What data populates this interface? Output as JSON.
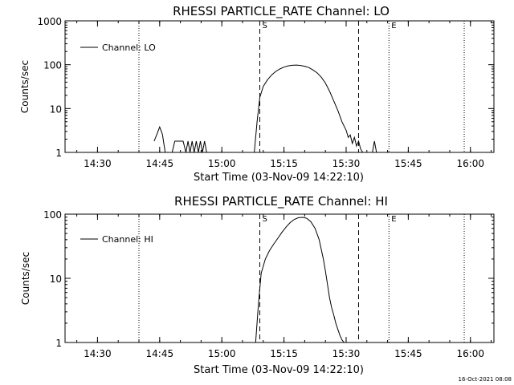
{
  "chart_data": [
    {
      "type": "line",
      "title": "RHESSI PARTICLE_RATE Channel: LO",
      "xlabel": "Start Time (03-Nov-09 14:22:10)",
      "ylabel": "Counts/sec",
      "yscale": "log",
      "ylim": [
        1,
        1000
      ],
      "xlim": [
        "14:22:10",
        "16:05:40"
      ],
      "x_ticks": [
        "14:30",
        "14:45",
        "15:00",
        "15:15",
        "15:30",
        "15:45",
        "16:00"
      ],
      "y_ticks": [
        "1",
        "10",
        "100",
        "1000"
      ],
      "legend": {
        "label": "Channel: LO",
        "position": "top-left"
      },
      "markers": [
        {
          "label": "",
          "time": "14:40:00",
          "style": "dotted"
        },
        {
          "label": "S",
          "time": "15:09:10",
          "style": "dashed"
        },
        {
          "label": "",
          "time": "15:33:00",
          "style": "dashed"
        },
        {
          "label": "E",
          "time": "15:40:20",
          "style": "dotted"
        },
        {
          "label": "",
          "time": "15:58:30",
          "style": "dotted"
        }
      ],
      "series": [
        {
          "name": "Channel: LO",
          "segments": [
            {
              "x": [
                "14:43:40",
                "14:44:20",
                "14:45:00",
                "14:45:40",
                "14:46:20"
              ],
              "y": [
                1.8,
                2.6,
                3.8,
                2.6,
                1.0
              ]
            },
            {
              "x": [
                "14:48:00",
                "14:48:40",
                "14:50:40",
                "14:51:20",
                "14:51:50",
                "14:52:20",
                "14:52:50",
                "14:53:20",
                "14:53:50",
                "14:54:20",
                "14:54:50",
                "14:55:20",
                "14:55:50",
                "14:56:20"
              ],
              "y": [
                1.0,
                1.8,
                1.8,
                1.0,
                1.8,
                1.0,
                1.8,
                1.0,
                1.8,
                1.0,
                1.8,
                1.0,
                1.8,
                1.0
              ]
            },
            {
              "x": [
                "15:07:50",
                "15:08:30",
                "15:09:10",
                "15:10:00",
                "15:11:00",
                "15:12:00",
                "15:13:00",
                "15:14:00",
                "15:15:00",
                "15:16:00",
                "15:17:00",
                "15:18:00",
                "15:19:00",
                "15:20:00",
                "15:21:00",
                "15:22:00",
                "15:23:00",
                "15:24:00",
                "15:25:00",
                "15:26:00",
                "15:27:00",
                "15:28:00",
                "15:29:00",
                "15:30:00",
                "15:30:30",
                "15:31:00",
                "15:31:30",
                "15:32:00",
                "15:32:30",
                "15:33:00",
                "15:33:30",
                "15:34:00"
              ],
              "y": [
                1.0,
                5,
                18,
                32,
                45,
                58,
                70,
                80,
                88,
                94,
                97,
                98,
                96,
                92,
                86,
                76,
                65,
                52,
                38,
                25,
                15,
                9,
                5,
                3.2,
                2.2,
                2.5,
                1.6,
                2.2,
                1.4,
                1.8,
                1.2,
                1.0
              ]
            },
            {
              "x": [
                "15:36:20",
                "15:36:50",
                "15:37:20"
              ],
              "y": [
                1.0,
                1.8,
                1.0
              ]
            }
          ]
        }
      ]
    },
    {
      "type": "line",
      "title": "RHESSI PARTICLE_RATE Channel: HI",
      "xlabel": "Start Time (03-Nov-09 14:22:10)",
      "ylabel": "Counts/sec",
      "yscale": "log",
      "ylim": [
        1,
        100
      ],
      "xlim": [
        "14:22:10",
        "16:05:40"
      ],
      "x_ticks": [
        "14:30",
        "14:45",
        "15:00",
        "15:15",
        "15:30",
        "15:45",
        "16:00"
      ],
      "y_ticks": [
        "1",
        "10",
        "100"
      ],
      "legend": {
        "label": "Channel: HI",
        "position": "top-left"
      },
      "markers": [
        {
          "label": "",
          "time": "14:40:00",
          "style": "dotted"
        },
        {
          "label": "S",
          "time": "15:09:10",
          "style": "dashed"
        },
        {
          "label": "",
          "time": "15:33:00",
          "style": "dashed"
        },
        {
          "label": "E",
          "time": "15:40:20",
          "style": "dotted"
        },
        {
          "label": "",
          "time": "15:58:30",
          "style": "dotted"
        }
      ],
      "series": [
        {
          "name": "Channel: HI",
          "segments": [
            {
              "x": [
                "15:08:10",
                "15:08:50",
                "15:09:30",
                "15:10:30",
                "15:11:30",
                "15:12:30",
                "15:13:30",
                "15:14:30",
                "15:15:30",
                "15:16:30",
                "15:17:30",
                "15:18:30",
                "15:19:30",
                "15:20:30",
                "15:21:30",
                "15:22:30",
                "15:23:30",
                "15:24:30",
                "15:25:00",
                "15:25:30",
                "15:26:00",
                "15:26:30",
                "15:27:00",
                "15:27:30",
                "15:28:00",
                "15:28:30",
                "15:29:00",
                "15:29:30"
              ],
              "y": [
                1.0,
                4,
                12,
                20,
                27,
                34,
                42,
                52,
                63,
                74,
                83,
                88,
                89,
                86,
                76,
                60,
                40,
                20,
                13,
                8,
                5,
                3.5,
                2.7,
                2.0,
                1.6,
                1.3,
                1.1,
                1.0
              ]
            }
          ]
        }
      ]
    }
  ],
  "footer": {
    "timestamp": "16-Oct-2021 08:08"
  }
}
